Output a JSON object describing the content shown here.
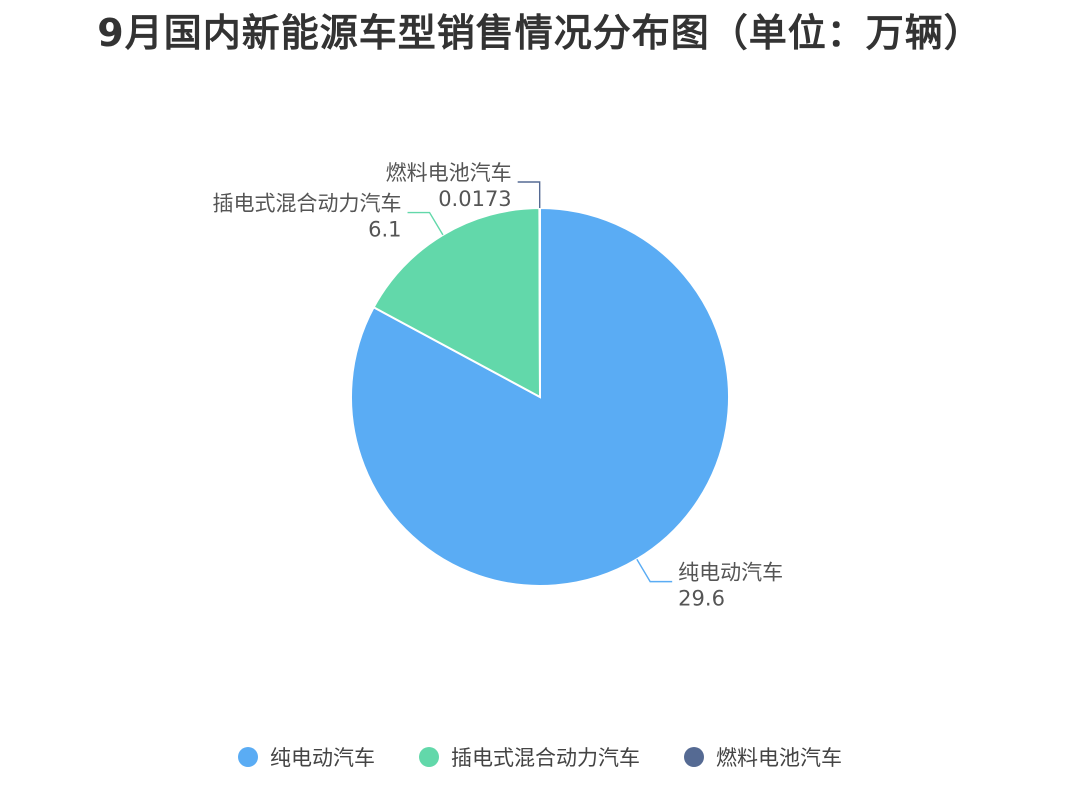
{
  "chart_data": {
    "type": "pie",
    "title": "9月国内新能源车型销售情况分布图（单位：万辆）",
    "categories": [
      "纯电动汽车",
      "插电式混合动力汽车",
      "燃料电池汽车"
    ],
    "values": [
      29.6,
      6.1,
      0.0173
    ],
    "value_labels": [
      "29.6",
      "6.1",
      "0.0173"
    ],
    "colors": [
      "#5aacf4",
      "#62d8aa",
      "#556a93"
    ],
    "legend_position": "bottom"
  }
}
